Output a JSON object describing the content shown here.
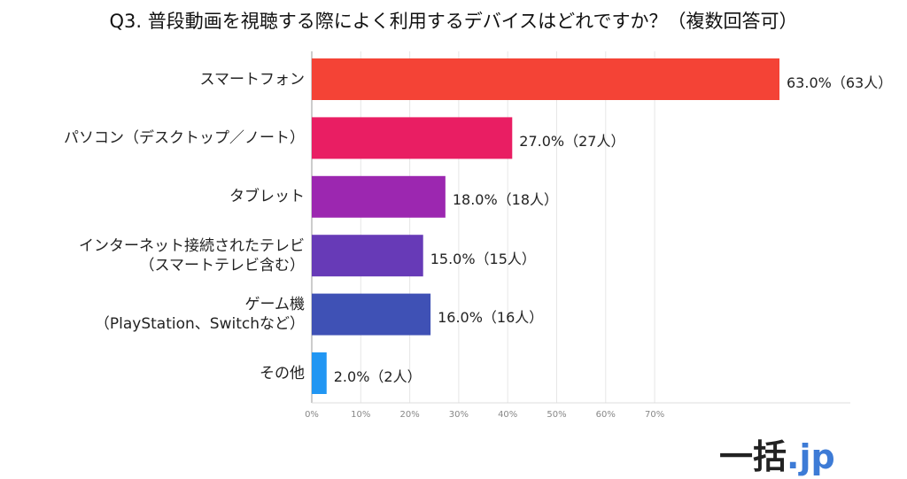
{
  "title": "Q3. 普段動画を視聴する際によく利用するデバイスはどれですか？（複数回答可）",
  "logo": {
    "main": "一括",
    "suffix": ".jp"
  },
  "chart_data": {
    "type": "bar",
    "orientation": "horizontal",
    "title": "Q3. 普段動画を視聴する際によく利用するデバイスはどれですか？（複数回答可）",
    "categories": [
      "スマートフォン",
      "パソコン（デスクトップ／ノート）",
      "タブレット",
      "インターネット接続されたテレビ\n（スマートテレビ含む）",
      "ゲーム機\n（PlayStation、Switchなど）",
      "その他"
    ],
    "values": [
      63.0,
      27.0,
      18.0,
      15.0,
      16.0,
      2.0
    ],
    "data_labels": [
      "63.0%（63人）",
      "27.0%（27人）",
      "18.0%（18人）",
      "15.0%（15人）",
      "16.0%（16人）",
      "2.0%（2人）"
    ],
    "colors": [
      "#f44336",
      "#e91e63",
      "#9c27b0",
      "#673ab7",
      "#3f51b5",
      "#2196f3"
    ],
    "x_ticks": [
      "0%",
      "10%",
      "20%",
      "30%",
      "40%",
      "50%",
      "60%",
      "70%"
    ],
    "xlim": [
      0,
      70
    ],
    "grid": true
  }
}
